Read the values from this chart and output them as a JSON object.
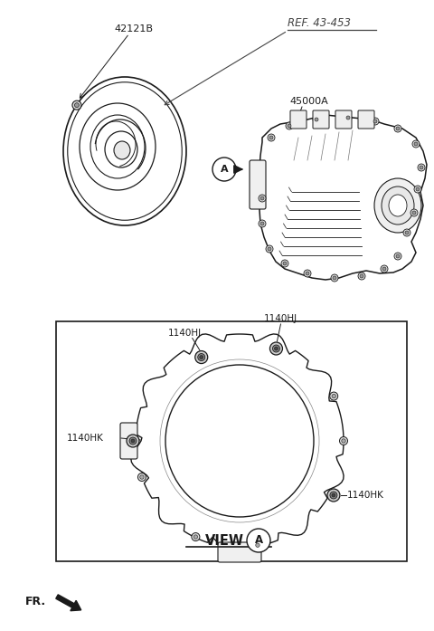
{
  "bg_color": "#ffffff",
  "line_color": "#1a1a1a",
  "label_42121B": "42121B",
  "label_45000A": "45000A",
  "label_1140HJ": "1140HJ",
  "label_1140HK": "1140HK",
  "label_view": "VIEW",
  "label_A": "A",
  "label_FR": "FR.",
  "label_ref": "REF. 43-453",
  "fs_label": 8.0,
  "fs_view": 10.5,
  "fs_fr": 9.0
}
